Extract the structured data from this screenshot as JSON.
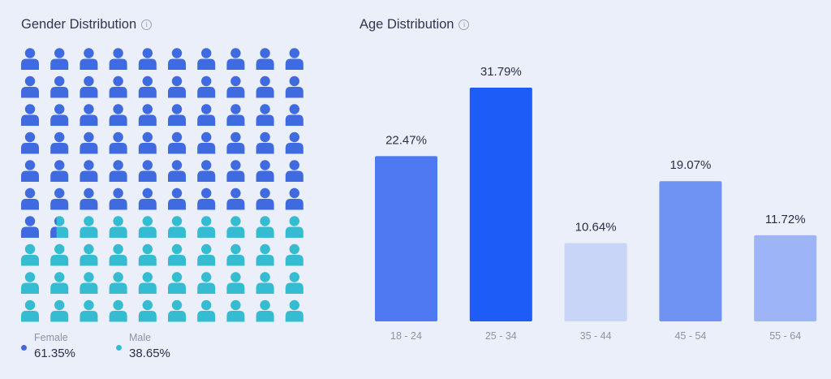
{
  "gender": {
    "title": "Gender Distribution",
    "info_icon": "info-icon",
    "female": {
      "label": "Female",
      "value": "61.35%",
      "color": "#3f6ae0"
    },
    "male": {
      "label": "Male",
      "value": "38.65%",
      "color": "#35bcd1"
    }
  },
  "age": {
    "title": "Age Distribution",
    "info_icon": "info-icon"
  },
  "chart_data": [
    {
      "type": "pictograph",
      "title": "Gender Distribution",
      "rows": 10,
      "cols": 10,
      "categories": [
        "Female",
        "Male"
      ],
      "values": [
        61.35,
        38.65
      ],
      "colors": [
        "#3f6ae0",
        "#35bcd1"
      ]
    },
    {
      "type": "bar",
      "title": "Age Distribution",
      "categories": [
        "18 - 24",
        "25 - 34",
        "35 - 44",
        "45 - 54",
        "55 - 64"
      ],
      "values": [
        22.47,
        31.79,
        10.64,
        19.07,
        11.72
      ],
      "labels": [
        "22.47%",
        "31.79%",
        "10.64%",
        "19.07%",
        "11.72%"
      ],
      "colors": [
        "#4e79f2",
        "#1d5cf7",
        "#c8d5f7",
        "#6e93f3",
        "#9db5f7"
      ],
      "xlabel": "",
      "ylabel": "",
      "ylim": [
        0,
        31.79
      ],
      "grid": false
    }
  ]
}
